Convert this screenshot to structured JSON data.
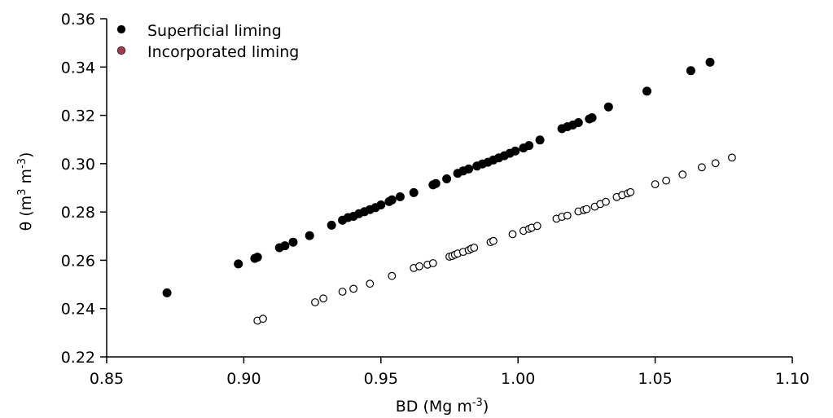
{
  "chart_data": {
    "type": "scatter",
    "xlabel": {
      "base": "BD (Mg m",
      "sup": "-3",
      "end": ")"
    },
    "ylabel": {
      "base": "θ (m",
      "sup1": "3",
      "mid": " m",
      "sup2": "-3",
      "end": ")"
    },
    "xlim": [
      0.85,
      1.1
    ],
    "ylim": [
      0.22,
      0.36
    ],
    "xticks": [
      "0.85",
      "0.90",
      "0.95",
      "1.00",
      "1.05",
      "1.10"
    ],
    "yticks": [
      "0.22",
      "0.24",
      "0.26",
      "0.28",
      "0.30",
      "0.32",
      "0.34",
      "0.36"
    ],
    "legend_position": "top-left",
    "series": [
      {
        "name": "Superficial liming",
        "marker": "filled",
        "color": "#000000",
        "legend_color": "#000000",
        "points": [
          [
            0.872,
            0.2465
          ],
          [
            0.898,
            0.2585
          ],
          [
            0.904,
            0.2608
          ],
          [
            0.905,
            0.2613
          ],
          [
            0.913,
            0.2652
          ],
          [
            0.915,
            0.266
          ],
          [
            0.918,
            0.2675
          ],
          [
            0.924,
            0.2702
          ],
          [
            0.932,
            0.2745
          ],
          [
            0.936,
            0.2766
          ],
          [
            0.938,
            0.2777
          ],
          [
            0.94,
            0.2782
          ],
          [
            0.942,
            0.2793
          ],
          [
            0.944,
            0.2801
          ],
          [
            0.946,
            0.281
          ],
          [
            0.948,
            0.2818
          ],
          [
            0.95,
            0.2829
          ],
          [
            0.953,
            0.2843
          ],
          [
            0.954,
            0.285
          ],
          [
            0.957,
            0.2863
          ],
          [
            0.962,
            0.288
          ],
          [
            0.969,
            0.2912
          ],
          [
            0.97,
            0.2918
          ],
          [
            0.974,
            0.2937
          ],
          [
            0.978,
            0.296
          ],
          [
            0.98,
            0.297
          ],
          [
            0.982,
            0.2978
          ],
          [
            0.985,
            0.299
          ],
          [
            0.987,
            0.2999
          ],
          [
            0.989,
            0.3006
          ],
          [
            0.991,
            0.3015
          ],
          [
            0.993,
            0.3024
          ],
          [
            0.995,
            0.3033
          ],
          [
            0.997,
            0.3043
          ],
          [
            0.999,
            0.3052
          ],
          [
            1.002,
            0.3065
          ],
          [
            1.004,
            0.3075
          ],
          [
            1.008,
            0.3098
          ],
          [
            1.016,
            0.3145
          ],
          [
            1.018,
            0.3153
          ],
          [
            1.02,
            0.316
          ],
          [
            1.022,
            0.317
          ],
          [
            1.026,
            0.3185
          ],
          [
            1.027,
            0.319
          ],
          [
            1.033,
            0.3235
          ],
          [
            1.047,
            0.33
          ],
          [
            1.063,
            0.3385
          ],
          [
            1.07,
            0.342
          ]
        ]
      },
      {
        "name": "Incorporated liming",
        "marker": "open",
        "color": "#000000",
        "legend_color": "#a23b4a",
        "points": [
          [
            0.905,
            0.235
          ],
          [
            0.907,
            0.2358
          ],
          [
            0.926,
            0.2426
          ],
          [
            0.929,
            0.2442
          ],
          [
            0.936,
            0.247
          ],
          [
            0.94,
            0.2482
          ],
          [
            0.946,
            0.2503
          ],
          [
            0.954,
            0.2535
          ],
          [
            0.962,
            0.2568
          ],
          [
            0.964,
            0.2575
          ],
          [
            0.967,
            0.2582
          ],
          [
            0.969,
            0.2588
          ],
          [
            0.975,
            0.2615
          ],
          [
            0.976,
            0.2618
          ],
          [
            0.977,
            0.2623
          ],
          [
            0.978,
            0.2628
          ],
          [
            0.98,
            0.2635
          ],
          [
            0.982,
            0.2642
          ],
          [
            0.983,
            0.2648
          ],
          [
            0.984,
            0.2652
          ],
          [
            0.99,
            0.2675
          ],
          [
            0.991,
            0.268
          ],
          [
            0.998,
            0.2708
          ],
          [
            1.002,
            0.2722
          ],
          [
            1.004,
            0.273
          ],
          [
            1.005,
            0.2735
          ],
          [
            1.007,
            0.2742
          ],
          [
            1.014,
            0.2772
          ],
          [
            1.016,
            0.278
          ],
          [
            1.018,
            0.2785
          ],
          [
            1.022,
            0.2802
          ],
          [
            1.024,
            0.2808
          ],
          [
            1.025,
            0.2812
          ],
          [
            1.028,
            0.2822
          ],
          [
            1.03,
            0.2833
          ],
          [
            1.032,
            0.2842
          ],
          [
            1.036,
            0.2862
          ],
          [
            1.038,
            0.287
          ],
          [
            1.04,
            0.2877
          ],
          [
            1.041,
            0.2882
          ],
          [
            1.05,
            0.2915
          ],
          [
            1.054,
            0.293
          ],
          [
            1.06,
            0.2955
          ],
          [
            1.067,
            0.2985
          ],
          [
            1.072,
            0.3002
          ],
          [
            1.078,
            0.3025
          ]
        ]
      }
    ]
  }
}
